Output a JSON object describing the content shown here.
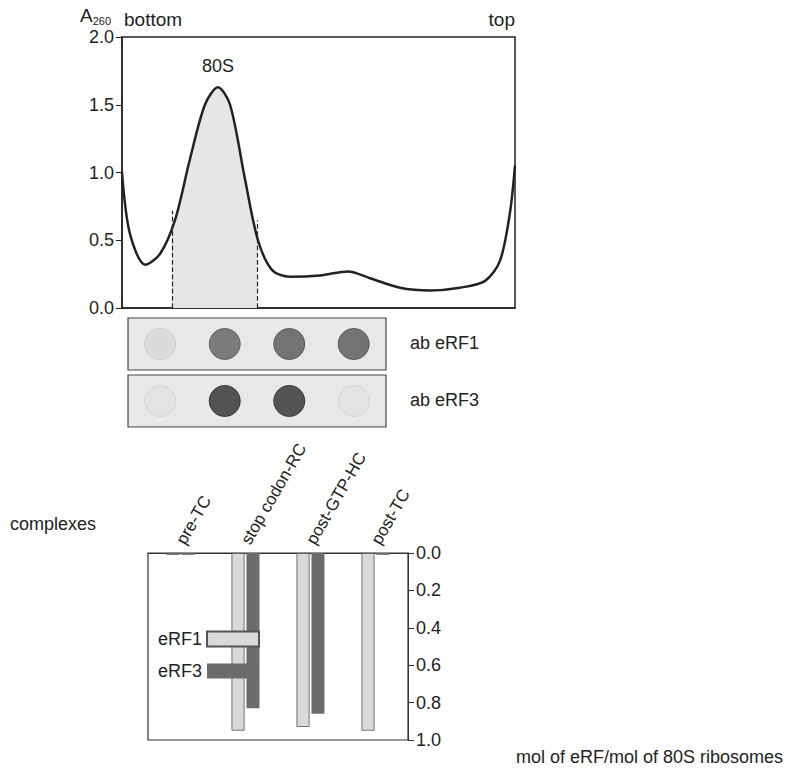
{
  "chart_data": [
    {
      "type": "line",
      "ylabel": "A260",
      "x_label_left": "bottom",
      "x_label_right": "top",
      "peak_label": "80S",
      "x": [
        0,
        2,
        5.9,
        9.7,
        13.5,
        17.3,
        21.1,
        24.4,
        27.5,
        31.3,
        34.6,
        38.2,
        42.7,
        50.4,
        57.5,
        63.1,
        70.7,
        78.4,
        86,
        92.4,
        96.2,
        98.7,
        100
      ],
      "values": [
        1.0,
        0.55,
        0.32,
        0.4,
        0.65,
        1.1,
        1.5,
        1.63,
        1.5,
        0.95,
        0.5,
        0.28,
        0.23,
        0.24,
        0.27,
        0.22,
        0.15,
        0.13,
        0.15,
        0.2,
        0.35,
        0.7,
        1.05
      ],
      "color": "#222222",
      "xlim": [
        0,
        100
      ],
      "xticks": [],
      "ylim": [
        0,
        2
      ],
      "yticks": [
        {
          "value": 0,
          "label": "0.0"
        },
        {
          "value": 0.5,
          "label": "0.5"
        },
        {
          "value": 1,
          "label": "1.0"
        },
        {
          "value": 1.5,
          "label": "1.5"
        },
        {
          "value": 2,
          "label": "2.0"
        }
      ],
      "tick_labels": "y",
      "shaded_range": [
        12.7,
        34.4
      ]
    },
    {
      "type": "dot_blot",
      "color": "#333333",
      "rows": [
        {
          "label": "ab eRF1",
          "intensities": [
            0.1,
            0.7,
            0.75,
            0.75
          ]
        },
        {
          "label": "ab eRF3",
          "intensities": [
            0.05,
            0.95,
            0.95,
            0.05
          ]
        }
      ]
    },
    {
      "type": "bar",
      "xlabel": "complexes",
      "ylabel": "mol of eRF/mol of 80S ribosomes",
      "categories": [
        "pre-TC",
        "stop codon-RC",
        "post-GTP-HC",
        "post-TC"
      ],
      "series": [
        {
          "name": "eRF1",
          "color": "#d9d9d9",
          "values": [
            0.01,
            0.95,
            0.93,
            0.95
          ]
        },
        {
          "name": "eRF3",
          "color": "#6b6b6b",
          "values": [
            0.01,
            0.83,
            0.86,
            0.01
          ]
        }
      ],
      "ylim": [
        0,
        1
      ],
      "yticks": [
        {
          "value": 0,
          "label": "0.0"
        },
        {
          "value": 0.2,
          "label": "0.2"
        },
        {
          "value": 0.4,
          "label": "0.4"
        },
        {
          "value": 0.6,
          "label": "0.6"
        },
        {
          "value": 0.8,
          "label": "0.8"
        },
        {
          "value": 1,
          "label": "1.0"
        }
      ],
      "legend": "left"
    }
  ]
}
